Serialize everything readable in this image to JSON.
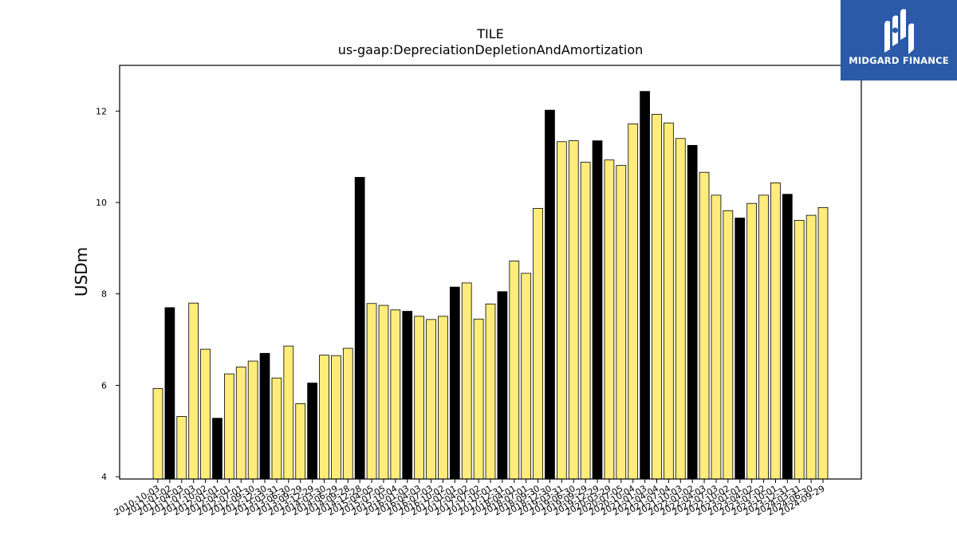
{
  "chart_data": {
    "type": "bar",
    "title": "TILE",
    "subtitle": "us-gaap:DepreciationDepletionAndAmortization",
    "ylabel": "USDm",
    "xlabel": "",
    "ylim": [
      3.95,
      13.0
    ],
    "yticks": [
      4,
      6,
      8,
      10,
      12
    ],
    "grid": false,
    "colors": {
      "quarter": "#ffec7a",
      "annual": "#000000",
      "edge": "#000000"
    },
    "categories": [
      "2010-10-03",
      "2011-01-02",
      "2011-04-03",
      "2011-07-03",
      "2011-10-02",
      "2012-01-01",
      "2012-04-01",
      "2012-07-01",
      "2012-09-30",
      "2012-12-30",
      "2013-03-31",
      "2013-06-30",
      "2013-09-29",
      "2013-12-29",
      "2014-03-30",
      "2014-06-29",
      "2014-09-28",
      "2014-12-28",
      "2015-04-05",
      "2015-07-05",
      "2015-10-04",
      "2016-01-03",
      "2016-04-03",
      "2016-07-03",
      "2016-10-02",
      "2017-01-01",
      "2017-04-02",
      "2017-07-02",
      "2017-10-01",
      "2017-12-31",
      "2018-04-01",
      "2018-07-01",
      "2018-09-30",
      "2018-12-30",
      "2019-03-31",
      "2019-06-30",
      "2019-09-29",
      "2019-12-29",
      "2020-03-29",
      "2020-07-05",
      "2020-10-04",
      "2021-01-03",
      "2021-04-04",
      "2021-07-04",
      "2021-10-03",
      "2022-01-02",
      "2022-04-03",
      "2022-07-03",
      "2022-10-02",
      "2023-01-01",
      "2023-04-02",
      "2023-07-02",
      "2023-10-01",
      "2023-12-31",
      "2024-03-31",
      "2024-06-30",
      "2024-09-29"
    ],
    "values": [
      5.93,
      7.7,
      5.32,
      7.8,
      6.79,
      5.28,
      6.25,
      6.4,
      6.53,
      6.7,
      6.16,
      6.86,
      5.6,
      6.05,
      6.66,
      6.65,
      6.81,
      10.55,
      7.79,
      7.75,
      7.65,
      7.62,
      7.51,
      7.44,
      7.51,
      8.15,
      8.24,
      7.45,
      7.78,
      8.05,
      8.72,
      8.45,
      9.87,
      12.02,
      11.33,
      11.35,
      10.88,
      11.35,
      10.93,
      10.81,
      11.72,
      12.43,
      11.93,
      11.74,
      11.4,
      11.25,
      10.66,
      10.16,
      9.82,
      9.66,
      9.98,
      10.16,
      10.43,
      10.18,
      9.61,
      9.72,
      9.89
    ],
    "annual": [
      false,
      true,
      false,
      false,
      false,
      true,
      false,
      false,
      false,
      true,
      false,
      false,
      false,
      true,
      false,
      false,
      false,
      true,
      false,
      false,
      false,
      true,
      false,
      false,
      false,
      true,
      false,
      false,
      false,
      true,
      false,
      false,
      false,
      true,
      false,
      false,
      false,
      true,
      false,
      false,
      false,
      true,
      false,
      false,
      false,
      true,
      false,
      false,
      false,
      true,
      false,
      false,
      false,
      true,
      false,
      false,
      false
    ]
  },
  "brand": {
    "logo_text": "MIDGARD FINANCE"
  }
}
